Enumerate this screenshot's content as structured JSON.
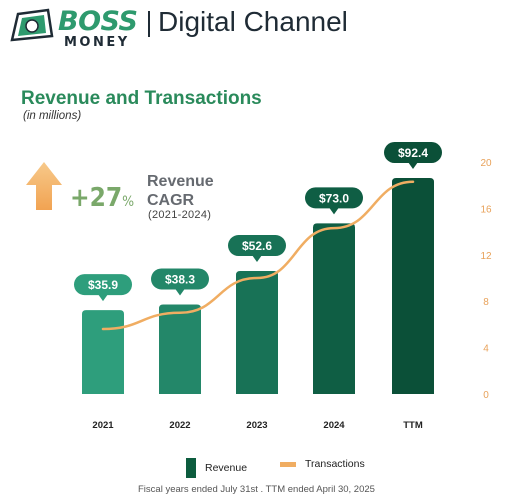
{
  "header": {
    "logo_line1": "BOSS",
    "logo_line2": "MONEY",
    "title": "Digital Channel"
  },
  "headline": {
    "cagr_value": "+27",
    "cagr_unit": "%",
    "cagr_label_line1": "Revenue",
    "cagr_label_line2": "CAGR",
    "cagr_period": "(2021-2024)"
  },
  "chart_data": {
    "type": "bar",
    "title": "Revenue and Transactions",
    "subtitle": "(in millions)",
    "categories": [
      "2021",
      "2022",
      "2023",
      "2024",
      "TTM"
    ],
    "series": [
      {
        "name": "Revenue",
        "kind": "bar",
        "values": [
          35.9,
          38.3,
          52.6,
          73.0,
          92.4
        ],
        "data_labels": [
          "$35.9",
          "$38.3",
          "$52.6",
          "$73.0",
          "$92.4"
        ],
        "colors": [
          "#2e9e7c",
          "#238769",
          "#187256",
          "#0f5e44",
          "#0b5038"
        ]
      },
      {
        "name": "Transactions",
        "kind": "line",
        "axis": "right",
        "values": [
          5.6,
          7.0,
          10.0,
          14.3,
          18.3
        ],
        "color": "#f0ad62"
      }
    ],
    "y_right": {
      "ticks": [
        0,
        4,
        8,
        12,
        16,
        20
      ],
      "range": [
        0,
        20
      ]
    },
    "y_left_hidden_range": [
      0,
      100
    ],
    "grid": false,
    "legend": "bottom-center",
    "footnote": "Fiscal years  ended July 31st .  TTM ended April 30, 2025"
  }
}
